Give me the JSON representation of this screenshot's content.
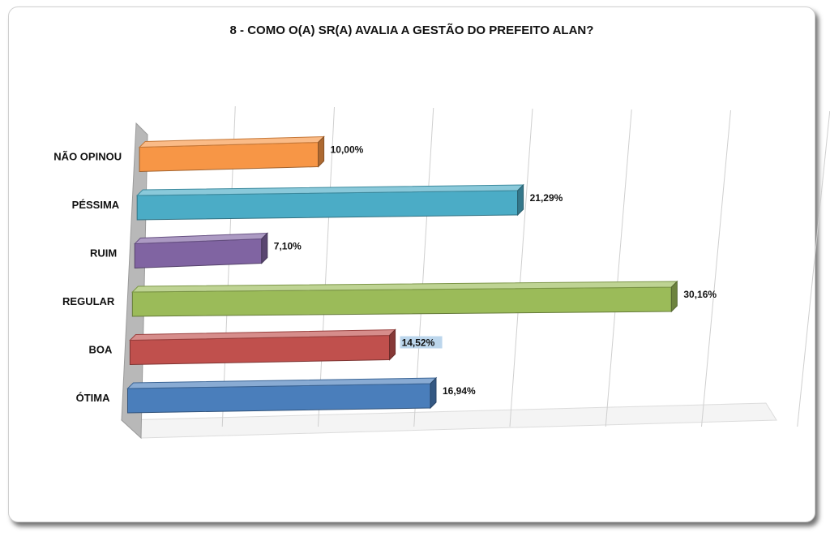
{
  "chart_data": {
    "type": "bar",
    "orientation": "horizontal",
    "title": "8 - COMO O(A) SR(A) AVALIA A GESTÃO DO PREFEITO ALAN?",
    "categories": [
      "ÓTIMA",
      "BOA",
      "REGULAR",
      "RUIM",
      "PÉSSIMA",
      "NÃO OPINOU"
    ],
    "values": [
      16.94,
      14.52,
      30.16,
      7.1,
      21.29,
      10.0
    ],
    "value_labels": [
      "16,94%",
      "14,52%",
      "30,16%",
      "7,10%",
      "21,29%",
      "10,00%"
    ],
    "colors": [
      "#4a7ebb",
      "#c0504d",
      "#9bbb59",
      "#8064a2",
      "#4bacc6",
      "#f79646"
    ],
    "highlighted_label_index": 1,
    "xlim": [
      0,
      35
    ],
    "grid": true,
    "legend": false,
    "style": "3d"
  }
}
